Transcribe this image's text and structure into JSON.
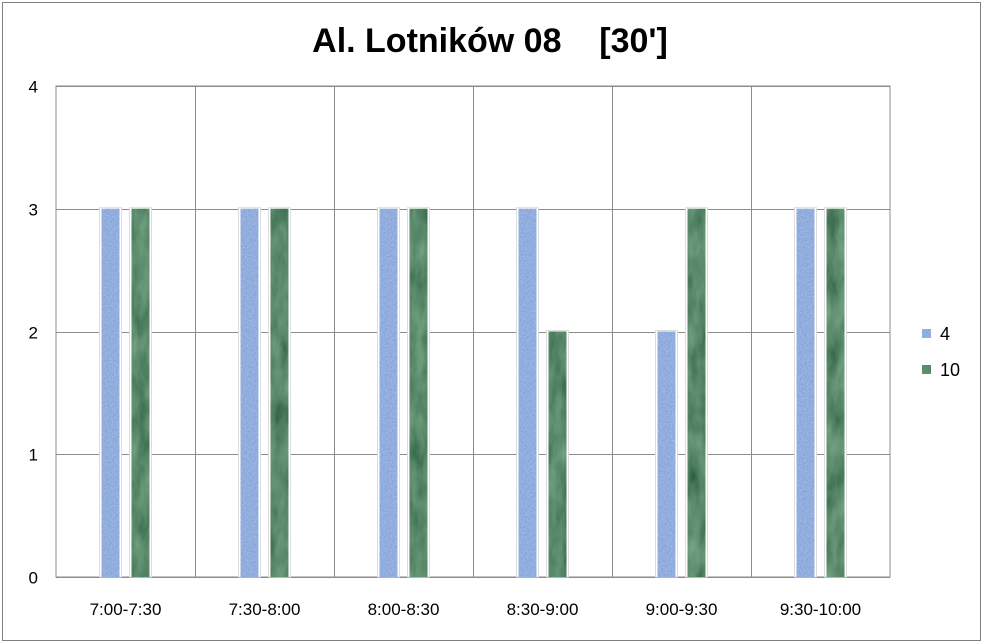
{
  "chart_data": {
    "type": "bar",
    "title": "Al. Lotników 08    [30']",
    "xlabel": "",
    "ylabel": "",
    "categories": [
      "7:00-7:30",
      "7:30-8:00",
      "8:00-8:30",
      "8:30-9:00",
      "9:00-9:30",
      "9:30-10:00"
    ],
    "series": [
      {
        "name": "4",
        "values": [
          3,
          3,
          3,
          3,
          2,
          3
        ],
        "color": "#7a99d0"
      },
      {
        "name": "10",
        "values": [
          3,
          3,
          3,
          2,
          3,
          3
        ],
        "color": "#1f5a3a"
      }
    ],
    "ylim": [
      0,
      4
    ],
    "yticks": [
      0,
      1,
      2,
      3,
      4
    ],
    "grid": true,
    "legend_position": "right"
  }
}
